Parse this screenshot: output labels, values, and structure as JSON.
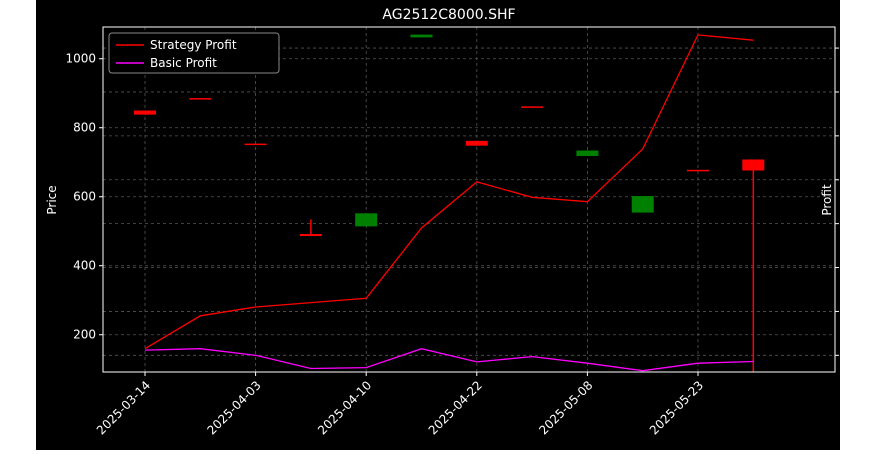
{
  "chart_data": {
    "type": "candlestick+line",
    "title": "AG2512C8000.SHF",
    "ylabel": "Price",
    "y2label": "Profit",
    "ylim": [
      92,
      1092
    ],
    "y2lim": [
      0.62,
      8.48
    ],
    "yticks": [
      200,
      400,
      600,
      800,
      1000
    ],
    "y2ticks": [
      1,
      2,
      3,
      4,
      5,
      6,
      7,
      8
    ],
    "xticks": [
      "2025-03-14",
      "2025-04-03",
      "2025-04-10",
      "2025-04-22",
      "2025-05-08",
      "2025-05-23"
    ],
    "grid": true,
    "legend_position": "top-left",
    "candles": [
      {
        "i": 0,
        "open": 850,
        "close": 838,
        "high": 850,
        "low": 838
      },
      {
        "i": 1,
        "open": 886,
        "close": 882,
        "high": 886,
        "low": 882
      },
      {
        "i": 2,
        "open": 754,
        "close": 750,
        "high": 754,
        "low": 750
      },
      {
        "i": 3,
        "open": 492,
        "close": 486,
        "high": 534,
        "low": 486
      },
      {
        "i": 4,
        "open": 514,
        "close": 552,
        "high": 552,
        "low": 514
      },
      {
        "i": 5,
        "open": 1062,
        "close": 1070,
        "high": 1070,
        "low": 1062
      },
      {
        "i": 6,
        "open": 762,
        "close": 748,
        "high": 762,
        "low": 748
      },
      {
        "i": 7,
        "open": 862,
        "close": 858,
        "high": 862,
        "low": 858
      },
      {
        "i": 8,
        "open": 718,
        "close": 734,
        "high": 734,
        "low": 718
      },
      {
        "i": 9,
        "open": 554,
        "close": 602,
        "high": 602,
        "low": 554
      },
      {
        "i": 10,
        "open": 678,
        "close": 674,
        "high": 678,
        "low": 674
      },
      {
        "i": 11,
        "open": 708,
        "close": 676,
        "high": 708,
        "low": 92
      }
    ],
    "series": [
      {
        "name": "Strategy Profit",
        "color": "#ff0000",
        "values": [
          1.15,
          1.9,
          2.1,
          2.2,
          2.3,
          3.9,
          4.95,
          4.6,
          4.5,
          5.7,
          8.3,
          8.18
        ]
      },
      {
        "name": "Basic Profit",
        "color": "#ff00ff",
        "values": [
          1.12,
          1.15,
          1.0,
          0.7,
          0.72,
          1.15,
          0.85,
          0.97,
          0.82,
          0.65,
          0.82,
          0.86
        ]
      }
    ],
    "colors": {
      "up": "#008000",
      "down": "#ff0000",
      "grid": "#555555",
      "axes": "#ffffff"
    }
  }
}
